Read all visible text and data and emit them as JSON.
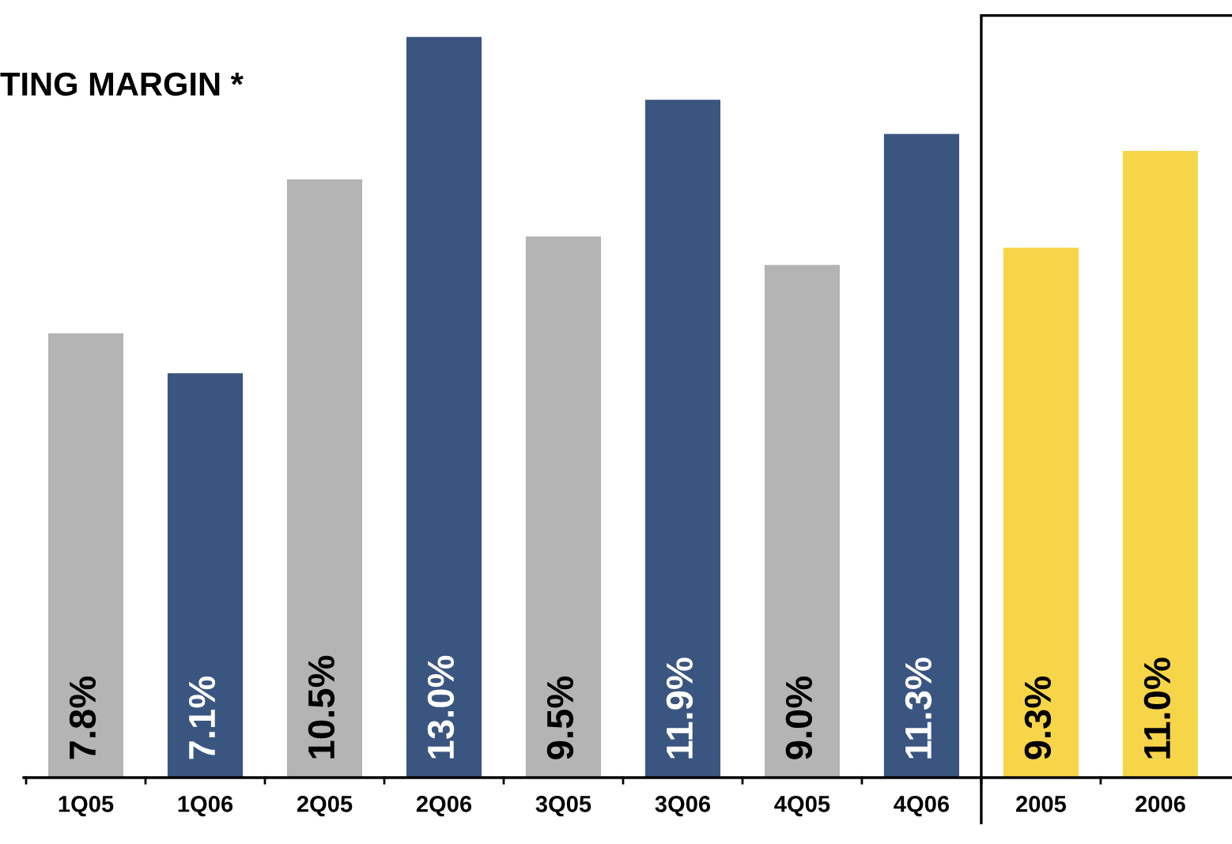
{
  "chart_data": {
    "type": "bar",
    "title": "TING MARGIN *",
    "categories": [
      "1Q05",
      "1Q06",
      "2Q05",
      "2Q06",
      "3Q05",
      "3Q06",
      "4Q05",
      "4Q06",
      "2005",
      "2006"
    ],
    "values": [
      7.8,
      7.1,
      10.5,
      13.0,
      9.5,
      11.9,
      9.0,
      11.3,
      9.3,
      11.0
    ],
    "value_labels": [
      "7.8%",
      "7.1%",
      "10.5%",
      "13.0%",
      "9.5%",
      "11.9%",
      "9.0%",
      "11.3%",
      "9.3%",
      "11.0%"
    ],
    "colors": [
      "#b4b4b4",
      "#3a5580",
      "#b4b4b4",
      "#3a5580",
      "#b4b4b4",
      "#3a5580",
      "#b4b4b4",
      "#3a5580",
      "#f7d548",
      "#f7d548"
    ],
    "grid": false,
    "legend": false
  }
}
